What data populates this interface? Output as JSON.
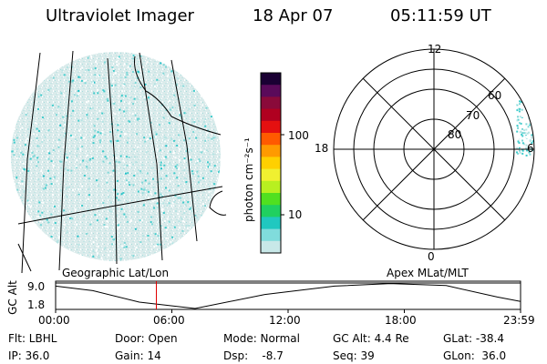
{
  "header": {
    "instrument": "Ultraviolet Imager",
    "date": "18 Apr 07",
    "time": "05:11:59 UT"
  },
  "colorbar": {
    "unit_label": "photon cm⁻²s⁻¹",
    "ticks": [
      "100",
      "10"
    ],
    "scale": "log",
    "colors": [
      "#1a0033",
      "#5a0a5a",
      "#8a0a3a",
      "#b00020",
      "#e41010",
      "#ff5a00",
      "#ff9a00",
      "#ffd000",
      "#f0f030",
      "#b8f020",
      "#50e020",
      "#20d060",
      "#20c8c0",
      "#80dcdc",
      "#c8e8e8"
    ]
  },
  "polar_plot": {
    "mlt_labels": [
      "12",
      "18",
      "6",
      "0"
    ],
    "lat_labels": [
      "60",
      "70",
      "80"
    ]
  },
  "timeline": {
    "left_label": "Geographic Lat/Lon",
    "right_label": "Apex MLat/MLT",
    "y_axis_label": "GC Alt",
    "y_ticks": [
      "9.0",
      "1.8"
    ],
    "x_ticks": [
      "00:00",
      "06:00",
      "12:00",
      "18:00",
      "23:59"
    ],
    "marker_time": "05:12",
    "marker_color": "#e00000"
  },
  "footer": {
    "flt": "Flt: LBHL",
    "ip": "IP: 36.0",
    "door": "Door: Open",
    "gain": "Gain: 14",
    "mode": "Mode: Normal",
    "dsp": "Dsp:    -8.7",
    "gc_alt": "GC Alt: 4.4 Re",
    "seq": "Seq: 39",
    "glat": "GLat: -38.4",
    "glon": "GLon:  36.0"
  }
}
